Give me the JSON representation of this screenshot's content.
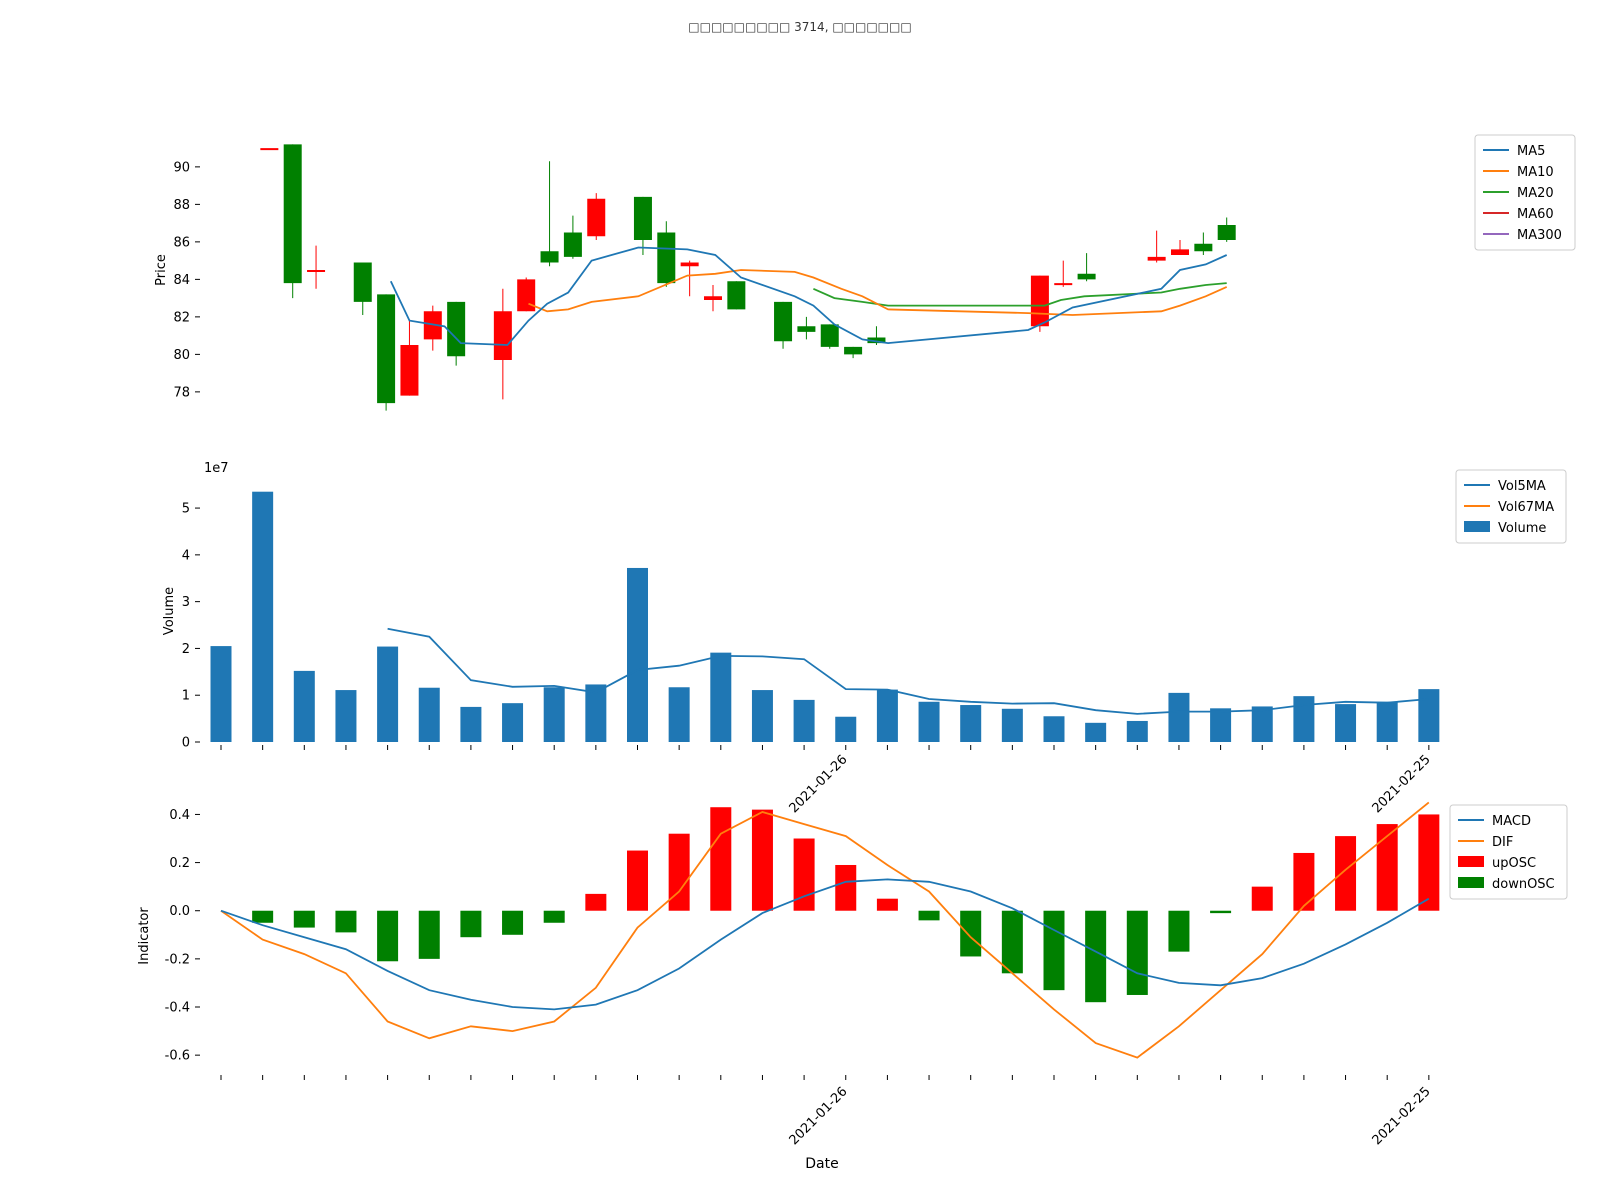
{
  "chart_data": [
    {
      "type": "candlestick",
      "panel": "price",
      "ylabel": "Price",
      "yticks": [
        78,
        80,
        82,
        84,
        86,
        88,
        90
      ],
      "ylim": [
        76.5,
        92.5
      ],
      "legend": {
        "placement": "top-right",
        "entries": [
          "MA5",
          "MA10",
          "MA20",
          "MA60",
          "MA300"
        ]
      },
      "series_colors": {
        "MA5": "#1f77b4",
        "MA10": "#ff7f0e",
        "MA20": "#2ca02c",
        "MA60": "#d62728",
        "MA300": "#9467bd",
        "up": "#ff0000",
        "down": "#008000"
      },
      "candles": [
        {
          "i": 1,
          "open": 91.0,
          "high": 91.0,
          "low": 91.0,
          "close": 91.0,
          "color": "up"
        },
        {
          "i": 2,
          "open": 91.2,
          "high": 91.2,
          "low": 83.0,
          "close": 83.8,
          "color": "down"
        },
        {
          "i": 3,
          "open": 84.5,
          "high": 85.8,
          "low": 83.5,
          "close": 84.5,
          "color": "up"
        },
        {
          "i": 5,
          "open": 84.9,
          "high": 84.9,
          "low": 82.1,
          "close": 82.8,
          "color": "down"
        },
        {
          "i": 6,
          "open": 83.2,
          "high": 83.2,
          "low": 77.0,
          "close": 77.4,
          "color": "down"
        },
        {
          "i": 7,
          "open": 77.8,
          "high": 81.8,
          "low": 77.8,
          "close": 80.5,
          "color": "up"
        },
        {
          "i": 8,
          "open": 80.8,
          "high": 82.6,
          "low": 80.2,
          "close": 82.3,
          "color": "up"
        },
        {
          "i": 9,
          "open": 82.8,
          "high": 82.8,
          "low": 79.4,
          "close": 79.9,
          "color": "down"
        },
        {
          "i": 11,
          "open": 79.7,
          "high": 83.5,
          "low": 77.6,
          "close": 82.3,
          "color": "up"
        },
        {
          "i": 12,
          "open": 82.3,
          "high": 84.1,
          "low": 82.3,
          "close": 84.0,
          "color": "up"
        },
        {
          "i": 13,
          "open": 85.5,
          "high": 90.3,
          "low": 84.7,
          "close": 84.9,
          "color": "down"
        },
        {
          "i": 14,
          "open": 86.5,
          "high": 87.4,
          "low": 85.1,
          "close": 85.2,
          "color": "down"
        },
        {
          "i": 15,
          "open": 86.3,
          "high": 88.6,
          "low": 86.1,
          "close": 88.3,
          "color": "up"
        },
        {
          "i": 17,
          "open": 88.4,
          "high": 88.4,
          "low": 85.3,
          "close": 86.1,
          "color": "down"
        },
        {
          "i": 18,
          "open": 86.5,
          "high": 87.1,
          "low": 83.6,
          "close": 83.8,
          "color": "down"
        },
        {
          "i": 19,
          "open": 84.7,
          "high": 85.0,
          "low": 83.1,
          "close": 84.9,
          "color": "up"
        },
        {
          "i": 20,
          "open": 82.9,
          "high": 83.7,
          "low": 82.3,
          "close": 83.1,
          "color": "up"
        },
        {
          "i": 21,
          "open": 83.9,
          "high": 83.9,
          "low": 82.4,
          "close": 82.4,
          "color": "down"
        },
        {
          "i": 23,
          "open": 82.8,
          "high": 82.8,
          "low": 80.3,
          "close": 80.7,
          "color": "down"
        },
        {
          "i": 24,
          "open": 81.5,
          "high": 82.0,
          "low": 80.8,
          "close": 81.2,
          "color": "down"
        },
        {
          "i": 25,
          "open": 81.6,
          "high": 81.6,
          "low": 80.3,
          "close": 80.4,
          "color": "down"
        },
        {
          "i": 26,
          "open": 80.4,
          "high": 80.4,
          "low": 79.8,
          "close": 80.0,
          "color": "down"
        },
        {
          "i": 27,
          "open": 80.9,
          "high": 81.5,
          "low": 80.5,
          "close": 80.6,
          "color": "down"
        },
        {
          "i": 34,
          "open": 81.5,
          "high": 84.2,
          "low": 81.2,
          "close": 84.2,
          "color": "up"
        },
        {
          "i": 35,
          "open": 83.8,
          "high": 85.0,
          "low": 83.6,
          "close": 83.8,
          "color": "up"
        },
        {
          "i": 36,
          "open": 84.3,
          "high": 85.4,
          "low": 83.9,
          "close": 84.0,
          "color": "down"
        },
        {
          "i": 39,
          "open": 85.0,
          "high": 86.6,
          "low": 84.9,
          "close": 85.2,
          "color": "up"
        },
        {
          "i": 40,
          "open": 85.3,
          "high": 86.1,
          "low": 85.3,
          "close": 85.6,
          "color": "up"
        },
        {
          "i": 41,
          "open": 85.9,
          "high": 86.5,
          "low": 85.3,
          "close": 85.5,
          "color": "down"
        },
        {
          "i": 42,
          "open": 86.9,
          "high": 87.3,
          "low": 86.0,
          "close": 86.1,
          "color": "down"
        }
      ],
      "lines": {
        "MA5": [
          [
            6.2,
            83.9
          ],
          [
            7.0,
            81.8
          ],
          [
            8.5,
            81.5
          ],
          [
            9.2,
            80.6
          ],
          [
            11.2,
            80.5
          ],
          [
            12.1,
            81.8
          ],
          [
            12.9,
            82.7
          ],
          [
            13.8,
            83.3
          ],
          [
            14.8,
            85.0
          ],
          [
            16.8,
            85.7
          ],
          [
            18.9,
            85.6
          ],
          [
            20.1,
            85.3
          ],
          [
            21.2,
            84.1
          ],
          [
            23.5,
            83.1
          ],
          [
            24.3,
            82.6
          ],
          [
            25.2,
            81.6
          ],
          [
            26.4,
            80.8
          ],
          [
            27.5,
            80.6
          ],
          [
            33.5,
            81.3
          ],
          [
            34.2,
            81.7
          ],
          [
            35.4,
            82.5
          ],
          [
            39.2,
            83.5
          ],
          [
            40.0,
            84.5
          ],
          [
            41.1,
            84.8
          ],
          [
            42.0,
            85.3
          ]
        ],
        "MA10": [
          [
            12.1,
            82.7
          ],
          [
            12.9,
            82.3
          ],
          [
            13.8,
            82.4
          ],
          [
            14.8,
            82.8
          ],
          [
            16.8,
            83.1
          ],
          [
            18.9,
            84.2
          ],
          [
            20.1,
            84.3
          ],
          [
            21.2,
            84.5
          ],
          [
            23.5,
            84.4
          ],
          [
            24.3,
            84.1
          ],
          [
            25.5,
            83.5
          ],
          [
            26.4,
            83.1
          ],
          [
            27.5,
            82.4
          ],
          [
            33.5,
            82.2
          ],
          [
            35.4,
            82.1
          ],
          [
            39.2,
            82.3
          ],
          [
            40.0,
            82.6
          ],
          [
            41.1,
            83.1
          ],
          [
            42.0,
            83.6
          ]
        ],
        "MA20": [
          [
            24.3,
            83.5
          ],
          [
            25.2,
            83.0
          ],
          [
            26.4,
            82.8
          ],
          [
            27.5,
            82.6
          ],
          [
            33.5,
            82.6
          ],
          [
            34.2,
            82.6
          ],
          [
            34.9,
            82.9
          ],
          [
            35.9,
            83.1
          ],
          [
            39.2,
            83.3
          ],
          [
            40.0,
            83.5
          ],
          [
            41.1,
            83.7
          ],
          [
            42.0,
            83.8
          ]
        ]
      }
    },
    {
      "type": "bar",
      "panel": "volume",
      "ylabel": "Volume",
      "scale_label": "1e7",
      "yticks": [
        0,
        1,
        2,
        3,
        4,
        5
      ],
      "ylim": [
        0,
        5.6
      ],
      "legend": {
        "placement": "top-right",
        "entries": [
          "Vol5MA",
          "Vol67MA",
          "Volume"
        ]
      },
      "series_colors": {
        "Volume": "#1f77b4",
        "Vol5MA": "#1f77b4",
        "Vol67MA": "#ff7f0e"
      },
      "values": [
        2.05,
        5.35,
        1.52,
        1.11,
        2.04,
        1.16,
        0.75,
        0.83,
        1.17,
        1.23,
        3.72,
        1.17,
        1.91,
        1.11,
        0.9,
        0.54,
        1.12,
        0.86,
        0.79,
        0.71,
        0.55,
        0.41,
        0.45,
        1.05,
        0.72,
        0.76,
        0.98,
        0.81,
        0.86,
        1.13
      ],
      "lines": {
        "Vol5MA": [
          [
            4.0,
            2.42
          ],
          [
            5.0,
            2.25
          ],
          [
            6.0,
            1.32
          ],
          [
            7.0,
            1.18
          ],
          [
            8.0,
            1.2
          ],
          [
            9.0,
            1.06
          ],
          [
            10.0,
            1.54
          ],
          [
            11.0,
            1.63
          ],
          [
            12.0,
            1.84
          ],
          [
            13.0,
            1.83
          ],
          [
            14.0,
            1.77
          ],
          [
            15.0,
            1.13
          ],
          [
            16.0,
            1.12
          ],
          [
            17.0,
            0.92
          ],
          [
            18.0,
            0.86
          ],
          [
            19.0,
            0.82
          ],
          [
            20.0,
            0.83
          ],
          [
            21.0,
            0.68
          ],
          [
            22.0,
            0.6
          ],
          [
            23.0,
            0.65
          ],
          [
            24.0,
            0.65
          ],
          [
            25.0,
            0.68
          ],
          [
            26.0,
            0.79
          ],
          [
            27.0,
            0.86
          ],
          [
            28.0,
            0.84
          ],
          [
            29.0,
            0.92
          ]
        ]
      }
    },
    {
      "type": "bar",
      "panel": "indicator",
      "ylabel": "Indicator",
      "xlabel": "Date",
      "yticks": [
        -0.6,
        -0.4,
        -0.2,
        0.0,
        0.2,
        0.4
      ],
      "ylim": [
        -0.67,
        0.46
      ],
      "x_tick_labels": [
        {
          "i": 15,
          "label": "2021-01-26"
        },
        {
          "i": 29,
          "label": "2021-02-25"
        }
      ],
      "legend": {
        "placement": "top-right",
        "entries": [
          "MACD",
          "DIF",
          "upOSC",
          "downOSC"
        ]
      },
      "series_colors": {
        "MACD": "#1f77b4",
        "DIF": "#ff7f0e",
        "upOSC": "#ff0000",
        "downOSC": "#008000"
      },
      "osc": [
        0.0,
        -0.05,
        -0.07,
        -0.09,
        -0.21,
        -0.2,
        -0.11,
        -0.1,
        -0.05,
        0.07,
        0.25,
        0.32,
        0.43,
        0.42,
        0.3,
        0.19,
        0.05,
        -0.04,
        -0.19,
        -0.26,
        -0.33,
        -0.38,
        -0.35,
        -0.17,
        -0.01,
        0.1,
        0.24,
        0.31,
        0.36,
        0.4
      ],
      "macd": [
        0.0,
        -0.06,
        -0.11,
        -0.16,
        -0.25,
        -0.33,
        -0.37,
        -0.4,
        -0.41,
        -0.39,
        -0.33,
        -0.24,
        -0.12,
        -0.01,
        0.06,
        0.12,
        0.13,
        0.12,
        0.08,
        0.01,
        -0.08,
        -0.17,
        -0.26,
        -0.3,
        -0.31,
        -0.28,
        -0.22,
        -0.14,
        -0.05,
        0.05
      ],
      "dif": [
        0.0,
        -0.12,
        -0.18,
        -0.26,
        -0.46,
        -0.53,
        -0.48,
        -0.5,
        -0.46,
        -0.32,
        -0.07,
        0.08,
        0.32,
        0.41,
        0.36,
        0.31,
        0.19,
        0.08,
        -0.11,
        -0.26,
        -0.41,
        -0.55,
        -0.61,
        -0.48,
        -0.33,
        -0.18,
        0.02,
        0.17,
        0.31,
        0.45
      ]
    }
  ]
}
